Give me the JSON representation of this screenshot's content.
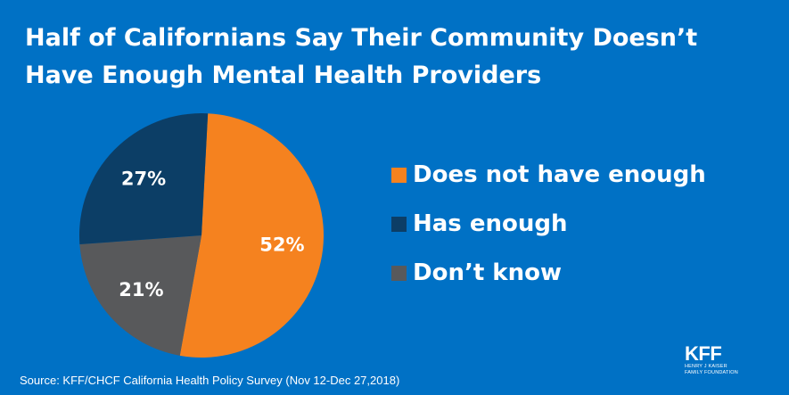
{
  "title_lines": [
    "Half of Californians Say Their Community Doesn’t",
    "Have Enough Mental Health Providers"
  ],
  "chart_data": {
    "type": "pie",
    "title": "Half of Californians Say Their Community Doesn’t Have Enough Mental Health Providers",
    "legend_position": "right",
    "slices": [
      {
        "label": "Does not have enough",
        "value": 52,
        "display": "52%",
        "color": "#f5821f"
      },
      {
        "label": "Don’t know",
        "value": 21,
        "display": "21%",
        "color": "#58595b"
      },
      {
        "label": "Has enough",
        "value": 27,
        "display": "27%",
        "color": "#0c3e66"
      }
    ],
    "legend": [
      {
        "label": "Does not have enough",
        "color": "#f5821f"
      },
      {
        "label": "Has enough",
        "color": "#0c3e66"
      },
      {
        "label": "Don’t know",
        "color": "#58595b"
      }
    ]
  },
  "source": "Source: KFF/CHCF California Health Policy Survey (Nov 12-Dec 27,2018)",
  "logo": {
    "word": "KFF",
    "sub_lines": [
      "HENRY J KAISER",
      "FAMILY FOUNDATION"
    ]
  },
  "colors": {
    "background": "#0071c5",
    "text": "#ffffff"
  }
}
